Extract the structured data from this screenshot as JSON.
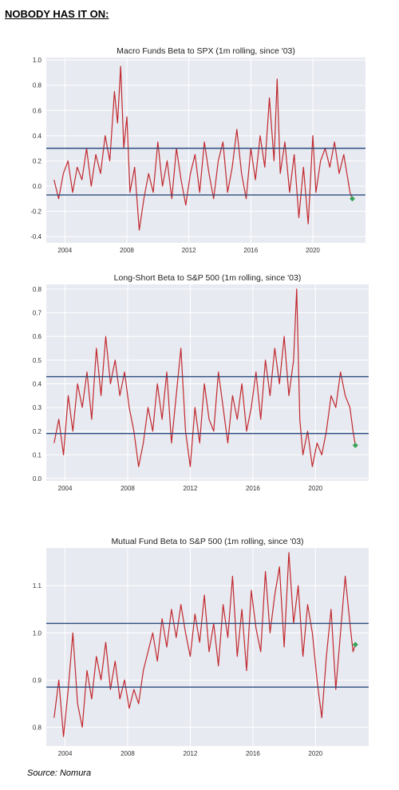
{
  "headline": "NOBODY HAS IT ON:",
  "source": "Source: Nomura",
  "colors": {
    "series": "#c0282d",
    "hline": "#2b4c7e",
    "marker": "#3aa35a",
    "panel": "#e8eaf1",
    "grid": "#ffffff"
  },
  "chart_data": [
    {
      "type": "line",
      "title": "Macro Funds Beta to SPX (1m rolling, since '03)",
      "x_ticks": [
        "2004",
        "2008",
        "2012",
        "2016",
        "2020"
      ],
      "x_tick_values": [
        2004,
        2008,
        2012,
        2016,
        2020
      ],
      "xlim": [
        2002.8,
        2023.4
      ],
      "y_ticks": [
        "1.0",
        "0.8",
        "0.6",
        "0.4",
        "0.2",
        "0.0",
        "-0.2",
        "-0.4"
      ],
      "y_tick_values": [
        1.0,
        0.8,
        0.6,
        0.4,
        0.2,
        0.0,
        -0.2,
        -0.4
      ],
      "ylim": [
        -0.45,
        1.02
      ],
      "hlines": [
        0.3,
        -0.07
      ],
      "last_point": {
        "x": 2022.55,
        "y": -0.1
      },
      "series": [
        {
          "x": [
            2003.3,
            2003.6,
            2003.9,
            2004.2,
            2004.5,
            2004.8,
            2005.1,
            2005.4,
            2005.7,
            2006.0,
            2006.3,
            2006.6,
            2006.9,
            2007.2,
            2007.4,
            2007.6,
            2007.8,
            2008.0,
            2008.2,
            2008.5,
            2008.8,
            2009.1,
            2009.4,
            2009.7,
            2010.0,
            2010.3,
            2010.6,
            2010.9,
            2011.2,
            2011.5,
            2011.8,
            2012.1,
            2012.4,
            2012.7,
            2013.0,
            2013.3,
            2013.6,
            2013.9,
            2014.2,
            2014.5,
            2014.8,
            2015.1,
            2015.4,
            2015.7,
            2016.0,
            2016.3,
            2016.6,
            2016.9,
            2017.2,
            2017.5,
            2017.7,
            2017.9,
            2018.2,
            2018.5,
            2018.8,
            2019.1,
            2019.4,
            2019.7,
            2020.0,
            2020.2,
            2020.5,
            2020.8,
            2021.1,
            2021.4,
            2021.7,
            2022.0,
            2022.2,
            2022.4,
            2022.55
          ],
          "y": [
            0.05,
            -0.1,
            0.1,
            0.2,
            -0.05,
            0.15,
            0.05,
            0.3,
            0.0,
            0.25,
            0.1,
            0.4,
            0.2,
            0.75,
            0.5,
            0.95,
            0.3,
            0.55,
            -0.05,
            0.15,
            -0.35,
            -0.1,
            0.1,
            -0.05,
            0.35,
            0.0,
            0.2,
            -0.1,
            0.3,
            0.05,
            -0.15,
            0.1,
            0.25,
            -0.05,
            0.35,
            0.1,
            -0.1,
            0.2,
            0.35,
            -0.05,
            0.15,
            0.45,
            0.1,
            -0.1,
            0.3,
            0.05,
            0.4,
            0.15,
            0.7,
            0.2,
            0.85,
            0.1,
            0.35,
            -0.05,
            0.25,
            -0.25,
            0.15,
            -0.3,
            0.4,
            -0.05,
            0.2,
            0.3,
            0.15,
            0.35,
            0.1,
            0.25,
            0.1,
            -0.05,
            -0.1
          ]
        }
      ]
    },
    {
      "type": "line",
      "title": "Long-Short Beta to S&P 500 (1m rolling, since '03)",
      "x_ticks": [
        "2004",
        "2008",
        "2012",
        "2016",
        "2020"
      ],
      "x_tick_values": [
        2004,
        2008,
        2012,
        2016,
        2020
      ],
      "xlim": [
        2002.8,
        2023.4
      ],
      "y_ticks": [
        "0.8",
        "0.7",
        "0.6",
        "0.5",
        "0.4",
        "0.3",
        "0.2",
        "0.1",
        "0.0"
      ],
      "y_tick_values": [
        0.8,
        0.7,
        0.6,
        0.5,
        0.4,
        0.3,
        0.2,
        0.1,
        0.0
      ],
      "ylim": [
        -0.01,
        0.82
      ],
      "hlines": [
        0.43,
        0.19
      ],
      "last_point": {
        "x": 2022.55,
        "y": 0.14
      },
      "series": [
        {
          "x": [
            2003.3,
            2003.6,
            2003.9,
            2004.2,
            2004.5,
            2004.8,
            2005.1,
            2005.4,
            2005.7,
            2006.0,
            2006.3,
            2006.6,
            2006.9,
            2007.2,
            2007.5,
            2007.8,
            2008.1,
            2008.4,
            2008.7,
            2009.0,
            2009.3,
            2009.6,
            2009.9,
            2010.2,
            2010.5,
            2010.8,
            2011.1,
            2011.4,
            2011.7,
            2012.0,
            2012.3,
            2012.6,
            2012.9,
            2013.2,
            2013.5,
            2013.8,
            2014.1,
            2014.4,
            2014.7,
            2015.0,
            2015.3,
            2015.6,
            2015.9,
            2016.2,
            2016.5,
            2016.8,
            2017.1,
            2017.4,
            2017.7,
            2018.0,
            2018.3,
            2018.6,
            2018.8,
            2019.0,
            2019.2,
            2019.5,
            2019.8,
            2020.1,
            2020.4,
            2020.7,
            2021.0,
            2021.3,
            2021.6,
            2021.9,
            2022.2,
            2022.4,
            2022.55
          ],
          "y": [
            0.15,
            0.25,
            0.1,
            0.35,
            0.2,
            0.4,
            0.3,
            0.45,
            0.25,
            0.55,
            0.35,
            0.6,
            0.4,
            0.5,
            0.35,
            0.45,
            0.3,
            0.2,
            0.05,
            0.15,
            0.3,
            0.2,
            0.4,
            0.25,
            0.45,
            0.15,
            0.35,
            0.55,
            0.2,
            0.05,
            0.3,
            0.15,
            0.4,
            0.25,
            0.2,
            0.45,
            0.3,
            0.15,
            0.35,
            0.25,
            0.4,
            0.2,
            0.3,
            0.45,
            0.25,
            0.5,
            0.35,
            0.55,
            0.4,
            0.6,
            0.35,
            0.5,
            0.8,
            0.25,
            0.1,
            0.2,
            0.05,
            0.15,
            0.1,
            0.2,
            0.35,
            0.3,
            0.45,
            0.35,
            0.3,
            0.2,
            0.14
          ]
        }
      ]
    },
    {
      "type": "line",
      "title": "Mutual Fund Beta to S&P 500 (1m rolling, since '03)",
      "x_ticks": [
        "2004",
        "2008",
        "2012",
        "2016",
        "2020"
      ],
      "x_tick_values": [
        2004,
        2008,
        2012,
        2016,
        2020
      ],
      "xlim": [
        2002.8,
        2023.4
      ],
      "y_ticks": [
        "1.1",
        "1.0",
        "0.9",
        "0.8"
      ],
      "y_tick_values": [
        1.1,
        1.0,
        0.9,
        0.8
      ],
      "ylim": [
        0.76,
        1.18
      ],
      "hlines": [
        1.02,
        0.885
      ],
      "last_point": {
        "x": 2022.55,
        "y": 0.975
      },
      "series": [
        {
          "x": [
            2003.3,
            2003.6,
            2003.9,
            2004.2,
            2004.5,
            2004.8,
            2005.1,
            2005.4,
            2005.7,
            2006.0,
            2006.3,
            2006.6,
            2006.9,
            2007.2,
            2007.5,
            2007.8,
            2008.1,
            2008.4,
            2008.7,
            2009.0,
            2009.3,
            2009.6,
            2009.9,
            2010.2,
            2010.5,
            2010.8,
            2011.1,
            2011.4,
            2011.7,
            2012.0,
            2012.3,
            2012.6,
            2012.9,
            2013.2,
            2013.5,
            2013.8,
            2014.1,
            2014.4,
            2014.7,
            2015.0,
            2015.3,
            2015.6,
            2015.9,
            2016.2,
            2016.5,
            2016.8,
            2017.1,
            2017.4,
            2017.7,
            2018.0,
            2018.3,
            2018.6,
            2018.9,
            2019.2,
            2019.5,
            2019.8,
            2020.1,
            2020.4,
            2020.7,
            2021.0,
            2021.3,
            2021.6,
            2021.9,
            2022.2,
            2022.4,
            2022.55
          ],
          "y": [
            0.82,
            0.9,
            0.78,
            0.88,
            1.0,
            0.85,
            0.8,
            0.92,
            0.86,
            0.95,
            0.9,
            0.98,
            0.88,
            0.94,
            0.86,
            0.9,
            0.84,
            0.88,
            0.85,
            0.92,
            0.96,
            1.0,
            0.94,
            1.03,
            0.97,
            1.05,
            0.99,
            1.06,
            1.0,
            0.95,
            1.04,
            0.98,
            1.08,
            0.96,
            1.02,
            0.93,
            1.06,
            0.99,
            1.12,
            0.95,
            1.05,
            0.92,
            1.09,
            1.01,
            0.96,
            1.13,
            1.0,
            1.08,
            1.14,
            0.97,
            1.17,
            1.02,
            1.1,
            0.95,
            1.06,
            1.0,
            0.9,
            0.82,
            0.95,
            1.05,
            0.88,
            1.0,
            1.12,
            1.02,
            0.96,
            0.975
          ]
        }
      ]
    }
  ]
}
